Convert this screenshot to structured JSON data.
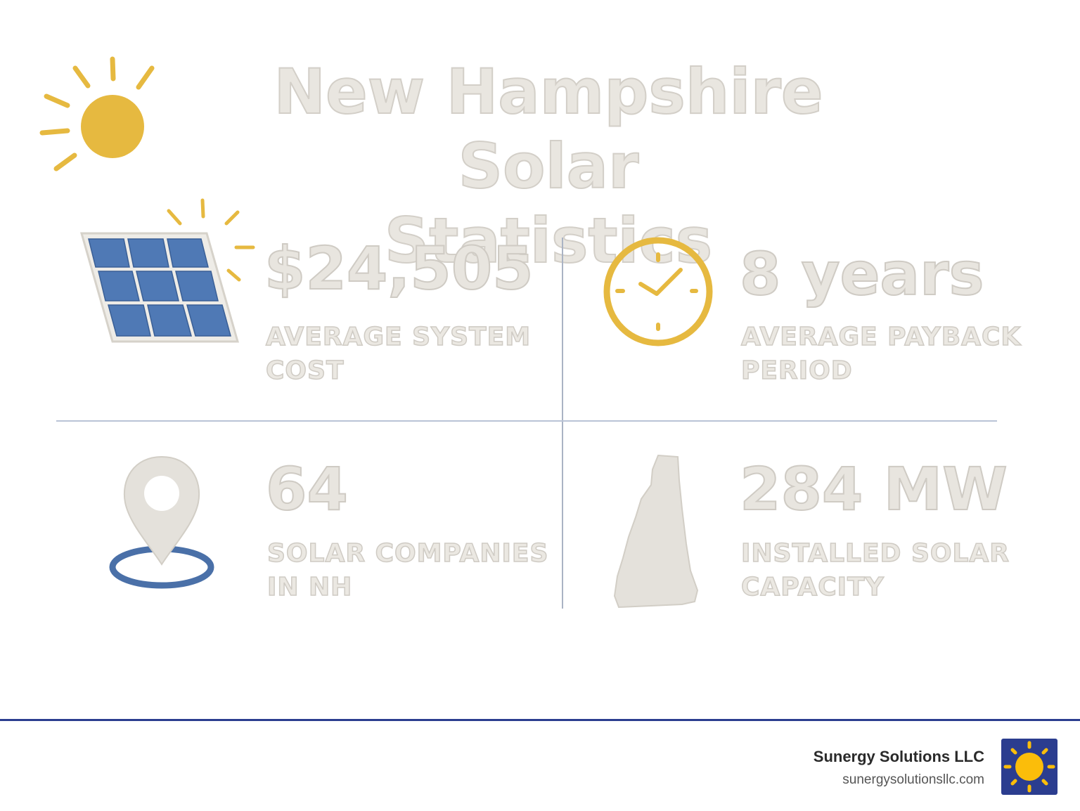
{
  "title": "New Hampshire Solar\nStatistics",
  "colors": {
    "sun_gold": "#e6b940",
    "panel_blue": "#4f79b5",
    "ring_blue": "#4a70a8",
    "brand_navy": "#2b3d8f",
    "logo_sun": "#fbbd0a"
  },
  "stats": [
    {
      "value": "$24,505",
      "label": "AVERAGE SYSTEM\nCOST",
      "icon": "solar-panel-icon"
    },
    {
      "value": "8 years",
      "label": "AVERAGE PAYBACK\nPERIOD",
      "icon": "clock-icon"
    },
    {
      "value": "64",
      "label": "SOLAR COMPANIES\nIN NH",
      "icon": "location-pin-icon"
    },
    {
      "value": "284 MW",
      "label": "INSTALLED SOLAR\nCAPACITY",
      "icon": "new-hampshire-map-icon"
    }
  ],
  "footer": {
    "company": "Sunergy Solutions LLC",
    "url": "sunergysolutionsllc.com",
    "logo_icon": "sun-logo-icon"
  }
}
